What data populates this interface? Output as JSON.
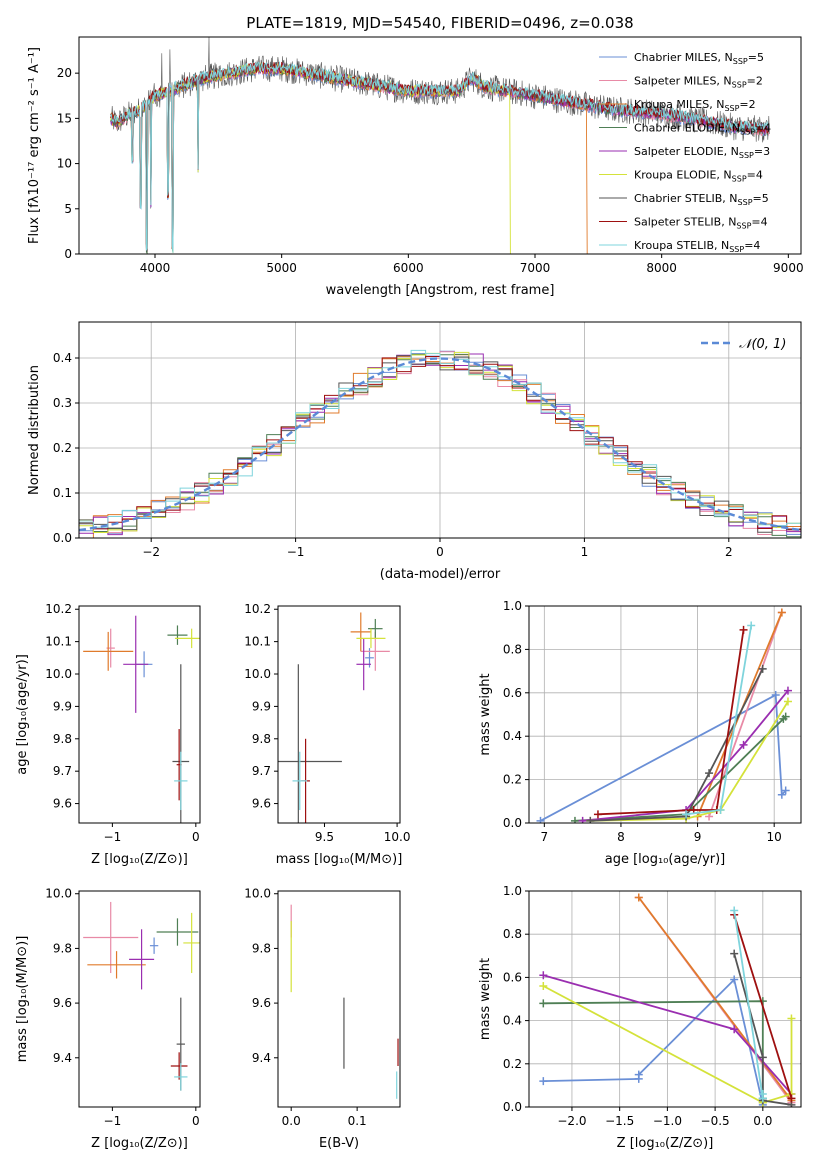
{
  "figure": {
    "title": "PLATE=1819, MJD=54540, FIBERID=0496, z=0.038",
    "colors": {
      "Chabrier MILES": "#6a8fd6",
      "Salpeter MILES": "#e88aa6",
      "Kroupa MILES": "#e07b2c",
      "Chabrier ELODIE": "#4f7f55",
      "Salpeter ELODIE": "#9a2eb0",
      "Kroupa ELODIE": "#d4e23a",
      "Chabrier STELIB": "#555555",
      "Salpeter STELIB": "#9e1010",
      "Kroupa STELIB": "#7fd4dc"
    }
  },
  "chart_data": [
    {
      "id": "spectrum",
      "type": "line",
      "title": "PLATE=1819, MJD=54540, FIBERID=0496, z=0.038",
      "xlabel": "wavelength [Angstrom, rest frame]",
      "ylabel": "Flux [fλ10⁻¹⁷ erg cm⁻² s⁻¹ A⁻¹]",
      "xlim": [
        3400,
        9100
      ],
      "ylim": [
        0,
        24
      ],
      "xticks": [
        4000,
        5000,
        6000,
        7000,
        8000,
        9000
      ],
      "yticks": [
        0,
        5,
        10,
        15,
        20
      ],
      "legend_position": "upper right",
      "series": [
        {
          "name": "Chabrier MILES, N_SSP=5",
          "model": "Chabrier MILES",
          "nssp": "5"
        },
        {
          "name": "Salpeter MILES, N_SSP=2",
          "model": "Salpeter MILES",
          "nssp": "2"
        },
        {
          "name": "Kroupa MILES, N_SSP=2",
          "model": "Kroupa MILES",
          "nssp": "2"
        },
        {
          "name": "Chabrier ELODIE, N_SSP=4",
          "model": "Chabrier ELODIE",
          "nssp": "4"
        },
        {
          "name": "Salpeter ELODIE, N_SSP=3",
          "model": "Salpeter ELODIE",
          "nssp": "3"
        },
        {
          "name": "Kroupa ELODIE, N_SSP=4",
          "model": "Kroupa ELODIE",
          "nssp": "4"
        },
        {
          "name": "Chabrier STELIB, N_SSP=5",
          "model": "Chabrier STELIB",
          "nssp": "5"
        },
        {
          "name": "Salpeter STELIB, N_SSP=4",
          "model": "Salpeter STELIB",
          "nssp": "4"
        },
        {
          "name": "Kroupa STELIB, N_SSP=4",
          "model": "Kroupa STELIB",
          "nssp": "4"
        }
      ],
      "continuum": {
        "x": [
          3650,
          3700,
          3800,
          3900,
          4000,
          4100,
          4200,
          4300,
          4400,
          4600,
          4800,
          5000,
          5200,
          5400,
          5600,
          5800,
          6000,
          6200,
          6400,
          6500,
          6600,
          6800,
          7000,
          7200,
          7400,
          7600,
          7800,
          8000,
          8200,
          8400,
          8600,
          8800
        ],
        "y": [
          15,
          14.5,
          15.5,
          16,
          17.5,
          18,
          18.5,
          19,
          19.5,
          20,
          20.5,
          20.5,
          20,
          19.5,
          19,
          18.5,
          18,
          18,
          18,
          19.5,
          18.5,
          18,
          17.5,
          17,
          16.5,
          16,
          15.8,
          15.5,
          15,
          14.5,
          14,
          13.8
        ]
      },
      "absorption_dips": [
        {
          "x": 3820,
          "y": 10
        },
        {
          "x": 3889,
          "y": 5
        },
        {
          "x": 3933,
          "y": 0
        },
        {
          "x": 3968,
          "y": 5
        },
        {
          "x": 4101,
          "y": 6
        },
        {
          "x": 4140,
          "y": 0
        },
        {
          "x": 4340,
          "y": 9
        }
      ],
      "truncations": [
        {
          "model": "Kroupa ELODIE",
          "x": 6800
        },
        {
          "model": "Kroupa MILES",
          "x": 7410
        }
      ]
    },
    {
      "id": "residuals",
      "type": "histogram",
      "xlabel": "(data-model)/error",
      "ylabel": "Normed distribution",
      "xlim": [
        -2.5,
        2.5
      ],
      "ylim": [
        0,
        0.48
      ],
      "xticks": [
        -2,
        -1,
        0,
        1,
        2
      ],
      "yticks": [
        0.0,
        0.1,
        0.2,
        0.3,
        0.4
      ],
      "reference_label": "𝒩(0, 1)",
      "reference": {
        "mean": 0,
        "sigma": 1
      },
      "bin_width": 0.1
    },
    {
      "id": "age-vs-Z",
      "type": "errorbar",
      "xlabel": "Z [log₁₀(Z/Z⊙)]",
      "ylabel": "age  [log₁₀(age/yr)]",
      "xlim": [
        -1.4,
        0.05
      ],
      "ylim": [
        9.54,
        10.21
      ],
      "xticks": [
        -1,
        0
      ],
      "yticks": [
        9.6,
        9.7,
        9.8,
        9.9,
        10.0,
        10.1,
        10.2
      ],
      "points": [
        {
          "model": "Chabrier MILES",
          "x": -0.62,
          "y": 10.03,
          "xerr": 0.1,
          "yerr": 0.04
        },
        {
          "model": "Salpeter MILES",
          "x": -1.02,
          "y": 10.08,
          "xerr": 0.05,
          "yerr": 0.06
        },
        {
          "model": "Kroupa MILES",
          "x": -1.05,
          "y": 10.07,
          "xerr": 0.3,
          "yerr": 0.06
        },
        {
          "model": "Chabrier ELODIE",
          "x": -0.22,
          "y": 10.12,
          "xerr": 0.12,
          "yerr": 0.03
        },
        {
          "model": "Salpeter ELODIE",
          "x": -0.72,
          "y": 10.03,
          "xerr": 0.15,
          "yerr": 0.15
        },
        {
          "model": "Kroupa ELODIE",
          "x": -0.05,
          "y": 10.11,
          "xerr": 0.2,
          "yerr": 0.03
        },
        {
          "model": "Chabrier STELIB",
          "x": -0.18,
          "y": 9.73,
          "xerr": 0.1,
          "yerr": 0.3
        },
        {
          "model": "Salpeter STELIB",
          "x": -0.2,
          "y": 9.72,
          "xerr": 0.03,
          "yerr": 0.11
        },
        {
          "model": "Kroupa STELIB",
          "x": -0.18,
          "y": 9.67,
          "xerr": 0.08,
          "yerr": 0.09
        }
      ]
    },
    {
      "id": "age-vs-mass",
      "type": "errorbar",
      "xlabel": "mass [log₁₀(M/M⊙)]",
      "ylabel": "",
      "xlim": [
        9.18,
        10.02
      ],
      "ylim": [
        9.54,
        10.21
      ],
      "xticks": [
        9.5,
        10.0
      ],
      "yticks": [
        9.6,
        9.7,
        9.8,
        9.9,
        10.0,
        10.1,
        10.2
      ],
      "points": [
        {
          "model": "Chabrier MILES",
          "x": 9.81,
          "y": 10.05,
          "xerr": 0.03,
          "yerr": 0.03
        },
        {
          "model": "Salpeter MILES",
          "x": 9.85,
          "y": 10.07,
          "xerr": 0.1,
          "yerr": 0.06
        },
        {
          "model": "Kroupa MILES",
          "x": 9.75,
          "y": 10.13,
          "xerr": 0.07,
          "yerr": 0.06
        },
        {
          "model": "Chabrier ELODIE",
          "x": 9.85,
          "y": 10.14,
          "xerr": 0.05,
          "yerr": 0.03
        },
        {
          "model": "Salpeter ELODIE",
          "x": 9.77,
          "y": 10.03,
          "xerr": 0.05,
          "yerr": 0.08
        },
        {
          "model": "Kroupa ELODIE",
          "x": 9.82,
          "y": 10.11,
          "xerr": 0.1,
          "yerr": 0.03
        },
        {
          "model": "Chabrier STELIB",
          "x": 9.32,
          "y": 9.73,
          "xerr": 0.3,
          "yerr": 0.3
        },
        {
          "model": "Salpeter STELIB",
          "x": 9.37,
          "y": 9.67,
          "xerr": 0.03,
          "yerr": 0.13
        },
        {
          "model": "Kroupa STELIB",
          "x": 9.33,
          "y": 9.67,
          "xerr": 0.05,
          "yerr": 0.09
        }
      ]
    },
    {
      "id": "mass-weight-vs-age",
      "type": "line",
      "xlabel": "age  [log₁₀(age/yr)]",
      "ylabel": "mass weight",
      "xlim": [
        6.8,
        10.35
      ],
      "ylim": [
        0,
        1.0
      ],
      "xticks": [
        7,
        8,
        9,
        10
      ],
      "yticks": [
        0.0,
        0.2,
        0.4,
        0.6,
        0.8,
        1.0
      ],
      "series": [
        {
          "model": "Chabrier MILES",
          "x": [
            6.95,
            10.02,
            10.1,
            10.15
          ],
          "y": [
            0.01,
            0.59,
            0.13,
            0.15
          ]
        },
        {
          "model": "Salpeter MILES",
          "x": [
            9.15,
            10.1
          ],
          "y": [
            0.03,
            0.97
          ]
        },
        {
          "model": "Kroupa MILES",
          "x": [
            9.0,
            10.1
          ],
          "y": [
            0.03,
            0.97
          ]
        },
        {
          "model": "Chabrier ELODIE",
          "x": [
            7.4,
            8.85,
            10.12,
            10.15
          ],
          "y": [
            0.01,
            0.04,
            0.48,
            0.49
          ]
        },
        {
          "model": "Salpeter ELODIE",
          "x": [
            7.5,
            8.85,
            9.6,
            10.18
          ],
          "y": [
            0.01,
            0.06,
            0.36,
            0.61
          ]
        },
        {
          "model": "Kroupa ELODIE",
          "x": [
            7.6,
            8.85,
            9.3,
            10.18
          ],
          "y": [
            0.01,
            0.02,
            0.06,
            0.56
          ]
        },
        {
          "model": "Chabrier STELIB",
          "x": [
            7.6,
            8.85,
            9.15,
            9.85
          ],
          "y": [
            0.01,
            0.03,
            0.23,
            0.71
          ]
        },
        {
          "model": "Salpeter STELIB",
          "x": [
            7.7,
            8.95,
            9.25,
            9.6
          ],
          "y": [
            0.04,
            0.06,
            0.06,
            0.89
          ]
        },
        {
          "model": "Kroupa STELIB",
          "x": [
            8.85,
            9.3,
            9.7
          ],
          "y": [
            0.04,
            0.06,
            0.91
          ]
        }
      ]
    },
    {
      "id": "mass-vs-Z",
      "type": "errorbar",
      "xlabel": "Z [log₁₀(Z/Z⊙)]",
      "ylabel": "mass [log₁₀(M/M⊙)]",
      "xlim": [
        -1.4,
        0.05
      ],
      "ylim": [
        9.22,
        10.01
      ],
      "xticks": [
        -1,
        0
      ],
      "yticks": [
        9.4,
        9.6,
        9.8,
        10.0
      ],
      "points": [
        {
          "model": "Chabrier MILES",
          "x": -0.5,
          "y": 9.81,
          "xerr": 0.05,
          "yerr": 0.03
        },
        {
          "model": "Salpeter MILES",
          "x": -1.02,
          "y": 9.84,
          "xerr": 0.33,
          "yerr": 0.13
        },
        {
          "model": "Kroupa MILES",
          "x": -0.95,
          "y": 9.74,
          "xerr": 0.35,
          "yerr": 0.05
        },
        {
          "model": "Chabrier ELODIE",
          "x": -0.22,
          "y": 9.86,
          "xerr": 0.25,
          "yerr": 0.05
        },
        {
          "model": "Salpeter ELODIE",
          "x": -0.65,
          "y": 9.76,
          "xerr": 0.15,
          "yerr": 0.11
        },
        {
          "model": "Kroupa ELODIE",
          "x": -0.05,
          "y": 9.82,
          "xerr": 0.1,
          "yerr": 0.11
        },
        {
          "model": "Chabrier STELIB",
          "x": -0.18,
          "y": 9.45,
          "xerr": 0.05,
          "yerr": 0.17
        },
        {
          "model": "Salpeter STELIB",
          "x": -0.2,
          "y": 9.37,
          "xerr": 0.1,
          "yerr": 0.05
        },
        {
          "model": "Kroupa STELIB",
          "x": -0.18,
          "y": 9.33,
          "xerr": 0.08,
          "yerr": 0.05
        }
      ]
    },
    {
      "id": "EBV",
      "type": "errorbar",
      "xlabel": "E(B-V)",
      "ylabel": "",
      "xlim": [
        -0.02,
        0.165
      ],
      "ylim": [
        9.22,
        10.01
      ],
      "xticks": [
        0.0,
        0.1
      ],
      "yticks": [
        9.4,
        9.6,
        9.8,
        10.0
      ],
      "points": [
        {
          "model": "Salpeter MILES",
          "x": 0.0,
          "y": 9.9,
          "xerr": 0,
          "yerr": 0.06
        },
        {
          "model": "Kroupa ELODIE",
          "x": 0.0,
          "y": 9.77,
          "xerr": 0,
          "yerr": 0.13
        },
        {
          "model": "Chabrier STELIB",
          "x": 0.08,
          "y": 9.49,
          "xerr": 0,
          "yerr": 0.13
        },
        {
          "model": "Salpeter STELIB",
          "x": 0.162,
          "y": 9.42,
          "xerr": 0,
          "yerr": 0.05
        },
        {
          "model": "Kroupa STELIB",
          "x": 0.16,
          "y": 9.3,
          "xerr": 0,
          "yerr": 0.05
        }
      ]
    },
    {
      "id": "mass-weight-vs-Z",
      "type": "line",
      "xlabel": "Z [log₁₀(Z/Z⊙)]",
      "ylabel": "mass weight",
      "xlim": [
        -2.45,
        0.4
      ],
      "ylim": [
        0,
        1.0
      ],
      "xticks": [
        -2.0,
        -1.5,
        -1.0,
        -0.5,
        0.0
      ],
      "yticks": [
        0.0,
        0.2,
        0.4,
        0.6,
        0.8,
        1.0
      ],
      "series": [
        {
          "model": "Chabrier MILES",
          "x": [
            -2.3,
            -1.3,
            -1.3,
            -0.3,
            0.0,
            0.0
          ],
          "y": [
            0.12,
            0.13,
            0.15,
            0.59,
            0.01,
            0.02
          ]
        },
        {
          "model": "Salpeter MILES",
          "x": [
            -1.3,
            0.3
          ],
          "y": [
            0.97,
            0.02
          ]
        },
        {
          "model": "Kroupa MILES",
          "x": [
            -1.3,
            0.3
          ],
          "y": [
            0.97,
            0.03
          ]
        },
        {
          "model": "Chabrier ELODIE",
          "x": [
            -2.3,
            0.0,
            0.0
          ],
          "y": [
            0.48,
            0.49,
            0.04
          ]
        },
        {
          "model": "Salpeter ELODIE",
          "x": [
            -2.3,
            -0.3,
            0.3
          ],
          "y": [
            0.61,
            0.36,
            0.06
          ]
        },
        {
          "model": "Kroupa ELODIE",
          "x": [
            -2.3,
            0.0,
            0.3,
            0.3
          ],
          "y": [
            0.56,
            0.02,
            0.06,
            0.41
          ]
        },
        {
          "model": "Chabrier STELIB",
          "x": [
            -0.3,
            0.0,
            0.0,
            0.3
          ],
          "y": [
            0.71,
            0.23,
            0.03,
            0.01
          ]
        },
        {
          "model": "Salpeter STELIB",
          "x": [
            -0.3,
            0.3
          ],
          "y": [
            0.89,
            0.04
          ]
        },
        {
          "model": "Kroupa STELIB",
          "x": [
            -0.3,
            0.0,
            0.0
          ],
          "y": [
            0.91,
            0.04,
            0.06
          ]
        }
      ]
    }
  ]
}
